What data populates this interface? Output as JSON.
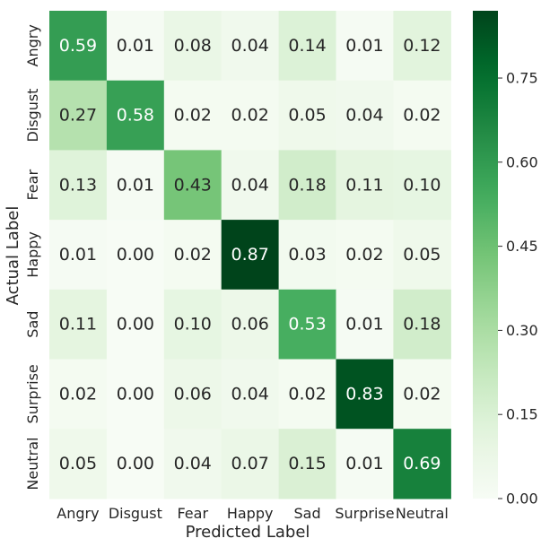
{
  "chart_data": {
    "type": "heatmap",
    "xlabel": "Predicted Label",
    "ylabel": "Actual Label",
    "x_categories": [
      "Angry",
      "Disgust",
      "Fear",
      "Happy",
      "Sad",
      "Surprise",
      "Neutral"
    ],
    "y_categories": [
      "Angry",
      "Disgust",
      "Fear",
      "Happy",
      "Sad",
      "Surprise",
      "Neutral"
    ],
    "values": [
      [
        0.59,
        0.01,
        0.08,
        0.04,
        0.14,
        0.01,
        0.12
      ],
      [
        0.27,
        0.58,
        0.02,
        0.02,
        0.05,
        0.04,
        0.02
      ],
      [
        0.13,
        0.01,
        0.43,
        0.04,
        0.18,
        0.11,
        0.1
      ],
      [
        0.01,
        0.0,
        0.02,
        0.87,
        0.03,
        0.02,
        0.05
      ],
      [
        0.11,
        0.0,
        0.1,
        0.06,
        0.53,
        0.01,
        0.18
      ],
      [
        0.02,
        0.0,
        0.06,
        0.04,
        0.02,
        0.83,
        0.02
      ],
      [
        0.05,
        0.0,
        0.04,
        0.07,
        0.15,
        0.01,
        0.69
      ]
    ],
    "value_labels": [
      [
        "0.59",
        "0.01",
        "0.08",
        "0.04",
        "0.14",
        "0.01",
        "0.12"
      ],
      [
        "0.27",
        "0.58",
        "0.02",
        "0.02",
        "0.05",
        "0.04",
        "0.02"
      ],
      [
        "0.13",
        "0.01",
        "0.43",
        "0.04",
        "0.18",
        "0.11",
        "0.10"
      ],
      [
        "0.01",
        "0.00",
        "0.02",
        "0.87",
        "0.03",
        "0.02",
        "0.05"
      ],
      [
        "0.11",
        "0.00",
        "0.10",
        "0.06",
        "0.53",
        "0.01",
        "0.18"
      ],
      [
        "0.02",
        "0.00",
        "0.06",
        "0.04",
        "0.02",
        "0.83",
        "0.02"
      ],
      [
        "0.05",
        "0.00",
        "0.04",
        "0.07",
        "0.15",
        "0.01",
        "0.69"
      ]
    ],
    "colormap": "Greens",
    "color_range": [
      0,
      0.87
    ],
    "colorbar_ticks": [
      0.0,
      0.15,
      0.3,
      0.45,
      0.6,
      0.75
    ],
    "colorbar_tick_labels": [
      "0.00",
      "0.15",
      "0.30",
      "0.45",
      "0.60",
      "0.75"
    ],
    "colors": {
      "low": "#f7fcf5",
      "high": "#00441b"
    }
  }
}
